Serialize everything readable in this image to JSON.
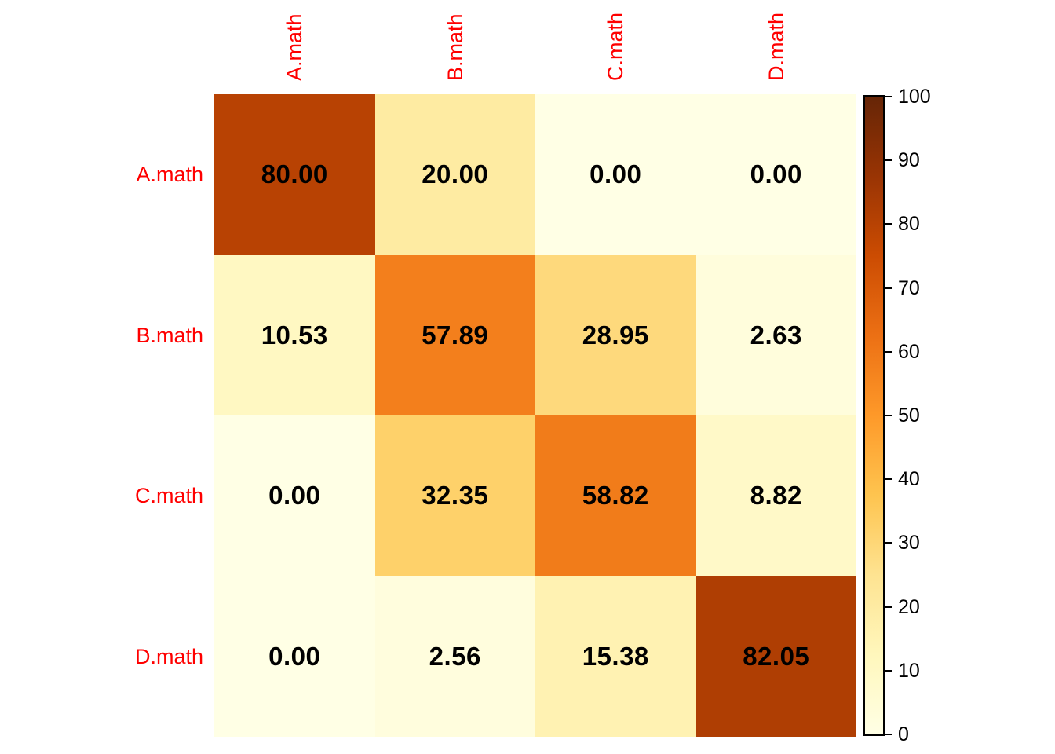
{
  "figure": {
    "background_color": "#ffffff",
    "axis_label_color": "#ff0000",
    "cell_value_color": "#000000",
    "colorbar_border_color": "#000000"
  },
  "chart_data": {
    "type": "heatmap",
    "title": "",
    "rows": [
      "A.math",
      "B.math",
      "C.math",
      "D.math"
    ],
    "columns": [
      "A.math",
      "B.math",
      "C.math",
      "D.math"
    ],
    "values": [
      [
        80.0,
        20.0,
        0.0,
        0.0
      ],
      [
        10.53,
        57.89,
        28.95,
        2.63
      ],
      [
        0.0,
        32.35,
        58.82,
        8.82
      ],
      [
        0.0,
        2.56,
        15.38,
        82.05
      ]
    ],
    "cell_labels": [
      [
        "80.00",
        "20.00",
        "0.00",
        "0.00"
      ],
      [
        "10.53",
        "57.89",
        "28.95",
        "2.63"
      ],
      [
        "0.00",
        "32.35",
        "58.82",
        "8.82"
      ],
      [
        "0.00",
        "2.56",
        "15.38",
        "82.05"
      ]
    ],
    "colorbar": {
      "min": 0,
      "max": 100,
      "ticks": [
        0,
        10,
        20,
        30,
        40,
        50,
        60,
        70,
        80,
        90,
        100
      ],
      "colormap_name": "YlOrBr",
      "stops": [
        {
          "pos": 0,
          "color": "#ffffe5"
        },
        {
          "pos": 12.5,
          "color": "#fff7bc"
        },
        {
          "pos": 25,
          "color": "#fee391"
        },
        {
          "pos": 37.5,
          "color": "#fec44f"
        },
        {
          "pos": 50,
          "color": "#fe9929"
        },
        {
          "pos": 62.5,
          "color": "#ec7014"
        },
        {
          "pos": 75,
          "color": "#cc4c02"
        },
        {
          "pos": 87.5,
          "color": "#993404"
        },
        {
          "pos": 100,
          "color": "#662506"
        }
      ],
      "legend_position": "right"
    },
    "grid": false
  }
}
